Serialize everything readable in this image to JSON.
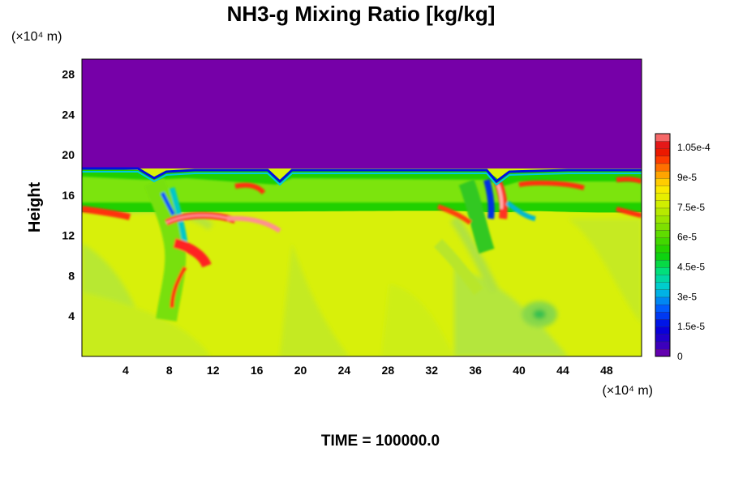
{
  "chart_data": {
    "type": "heatmap",
    "title": "NH3-g Mixing Ratio [kg/kg]",
    "ylabel": "Height",
    "x_unit_label": "(×10⁴ m)",
    "y_unit_label": "(×10⁴ m)",
    "time_label": "TIME = 100000.0",
    "xlim": [
      0,
      51.2
    ],
    "ylim": [
      0,
      29.5
    ],
    "x_ticks": [
      "4",
      "8",
      "12",
      "16",
      "20",
      "24",
      "28",
      "32",
      "36",
      "40",
      "44",
      "48"
    ],
    "y_ticks": [
      "4",
      "8",
      "12",
      "16",
      "20",
      "24",
      "28"
    ],
    "colorbar": {
      "min": 0,
      "max": 0.000112,
      "tick_labels": [
        "0",
        "1.5e-5",
        "3e-5",
        "4.5e-5",
        "6e-5",
        "7.5e-5",
        "9e-5",
        "1.05e-4"
      ],
      "tick_values": [
        0,
        1.5e-05,
        3e-05,
        4.5e-05,
        6e-05,
        7.5e-05,
        9e-05,
        0.000105
      ]
    },
    "field_summary": {
      "upper_region_value": 0,
      "upper_region_bottom_height": 18.5,
      "moist_band_value": 6e-05,
      "moist_band_height_range": [
        15.5,
        18.5
      ],
      "background_value": 7.5e-05,
      "plume_x_centers": [
        9,
        37
      ]
    },
    "colors": {
      "upper_region": "#7600a8",
      "background": "#d8f00a"
    }
  }
}
